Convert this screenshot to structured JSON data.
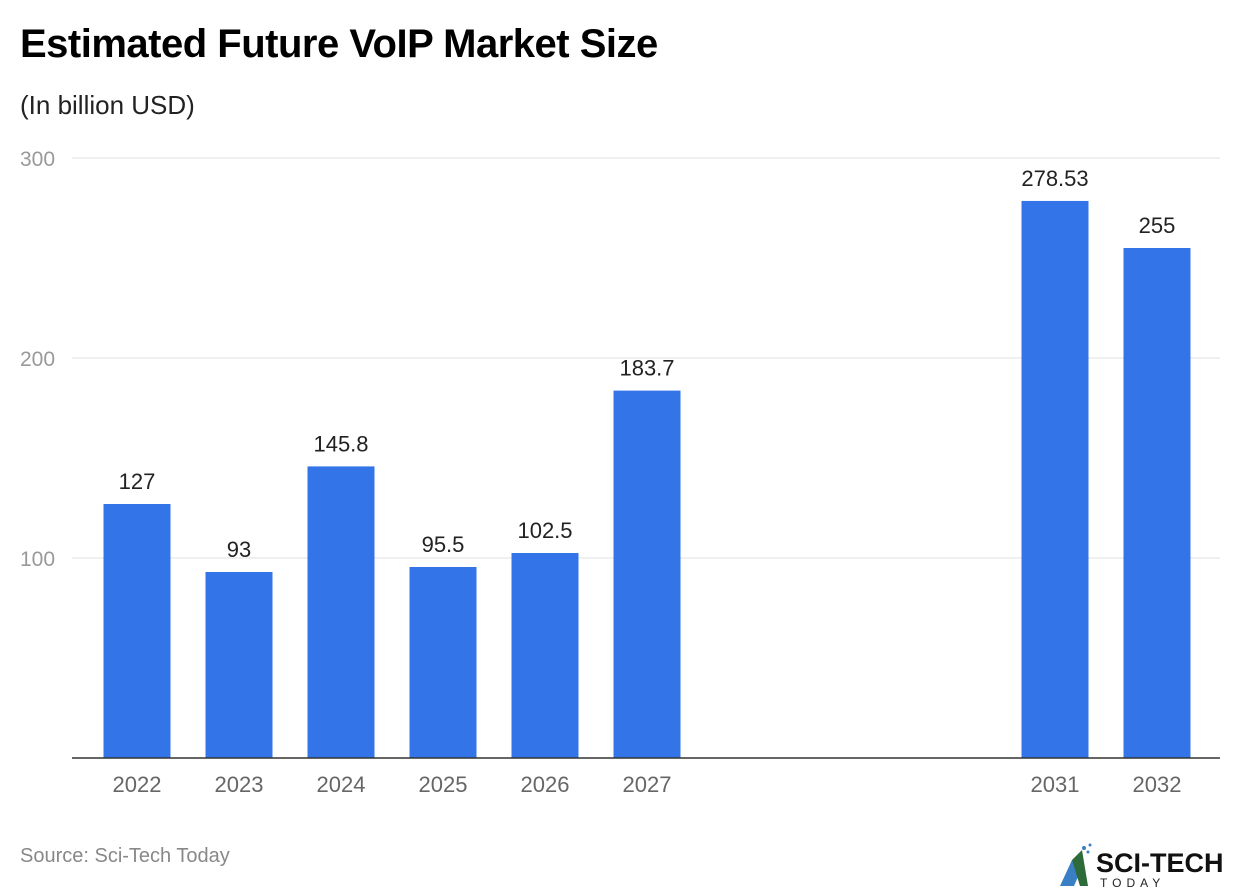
{
  "chart_data": {
    "type": "bar",
    "title": "Estimated Future VoIP Market Size",
    "subtitle": "(In billion USD)",
    "categories": [
      "2022",
      "2023",
      "2024",
      "2025",
      "2026",
      "2027",
      "2031",
      "2032"
    ],
    "values": [
      127,
      93,
      145.8,
      95.5,
      102.5,
      183.7,
      278.53,
      255
    ],
    "data_labels": [
      "127",
      "93",
      "145.8",
      "95.5",
      "102.5",
      "183.7",
      "278.53",
      "255"
    ],
    "xlabel": "",
    "ylabel": "",
    "ylim": [
      0,
      300
    ],
    "yticks": [
      "100",
      "200",
      "300"
    ],
    "grid": true,
    "bar_color": "#3374e8"
  },
  "source": "Source: Sci-Tech Today",
  "logo": {
    "text": "SCI-TECH",
    "subtext": "TODAY"
  }
}
